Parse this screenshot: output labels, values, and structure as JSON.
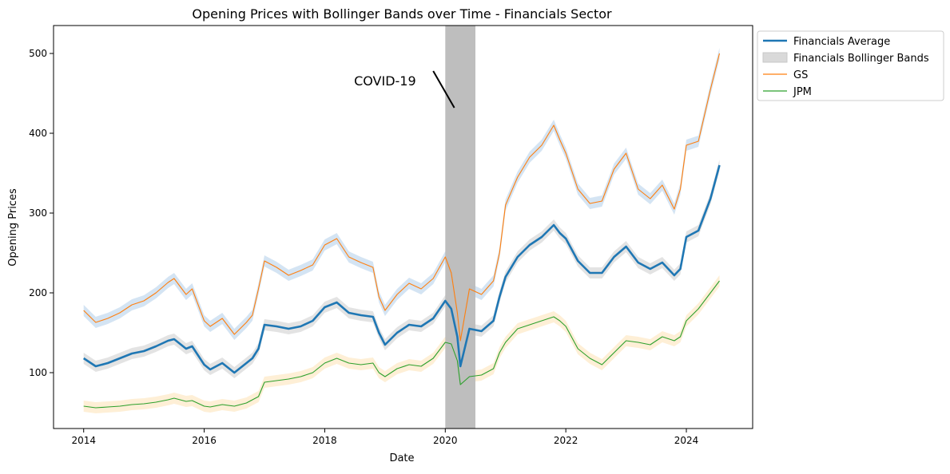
{
  "chart_data": {
    "type": "line",
    "title": "Opening Prices with Bollinger Bands over Time - Financials Sector",
    "xlabel": "Date",
    "ylabel": "Opening Prices",
    "xlim": [
      2013.5,
      2025.1
    ],
    "ylim": [
      30,
      535
    ],
    "x_ticks": [
      2014,
      2016,
      2018,
      2020,
      2022,
      2024
    ],
    "x_tick_labels": [
      "2014",
      "2016",
      "2018",
      "2020",
      "2022",
      "2024"
    ],
    "y_ticks": [
      100,
      200,
      300,
      400,
      500
    ],
    "y_tick_labels": [
      "100",
      "200",
      "300",
      "400",
      "500"
    ],
    "grid": false,
    "legend_position": "outside-top-right",
    "legend": [
      {
        "label": "Financials Average",
        "color": "#1f77b4",
        "kind": "line-thick"
      },
      {
        "label": "Financials Bollinger Bands",
        "color": "#d9d9d9",
        "kind": "band"
      },
      {
        "label": "GS",
        "color": "#ff7f0e",
        "kind": "line"
      },
      {
        "label": "JPM",
        "color": "#2ca02c",
        "kind": "line"
      }
    ],
    "shaded_region": {
      "x_start": 2020.0,
      "x_end": 2020.5,
      "color": "#bbbbbb"
    },
    "annotation": {
      "text": "COVID-19",
      "text_x": 2019.0,
      "text_y": 460,
      "arrow_from": [
        2019.8,
        478
      ],
      "arrow_to": [
        2020.15,
        432
      ]
    },
    "series": [
      {
        "name": "GS",
        "color": "#ff7f0e",
        "band_color": "#c6dbef",
        "x": [
          2014.0,
          2014.2,
          2014.4,
          2014.6,
          2014.8,
          2015.0,
          2015.2,
          2015.4,
          2015.5,
          2015.7,
          2015.8,
          2016.0,
          2016.1,
          2016.3,
          2016.5,
          2016.7,
          2016.8,
          2016.9,
          2017.0,
          2017.2,
          2017.4,
          2017.6,
          2017.8,
          2018.0,
          2018.2,
          2018.4,
          2018.6,
          2018.8,
          2018.9,
          2019.0,
          2019.2,
          2019.4,
          2019.6,
          2019.8,
          2020.0,
          2020.1,
          2020.2,
          2020.25,
          2020.4,
          2020.6,
          2020.8,
          2020.9,
          2021.0,
          2021.2,
          2021.4,
          2021.6,
          2021.8,
          2021.9,
          2022.0,
          2022.2,
          2022.4,
          2022.6,
          2022.8,
          2023.0,
          2023.2,
          2023.4,
          2023.6,
          2023.8,
          2023.9,
          2024.0,
          2024.2,
          2024.4,
          2024.55
        ],
        "y": [
          178,
          163,
          168,
          175,
          185,
          190,
          200,
          213,
          218,
          198,
          205,
          165,
          158,
          168,
          148,
          163,
          172,
          205,
          240,
          232,
          222,
          228,
          235,
          260,
          268,
          245,
          238,
          232,
          195,
          178,
          198,
          212,
          205,
          218,
          245,
          225,
          175,
          140,
          205,
          198,
          215,
          250,
          310,
          345,
          370,
          385,
          410,
          392,
          375,
          330,
          312,
          315,
          355,
          375,
          330,
          318,
          335,
          305,
          330,
          385,
          390,
          455,
          500
        ]
      },
      {
        "name": "Financials Average",
        "color": "#1f77b4",
        "band_color": "#d9d9d9",
        "x": [
          2014.0,
          2014.2,
          2014.4,
          2014.6,
          2014.8,
          2015.0,
          2015.2,
          2015.4,
          2015.5,
          2015.7,
          2015.8,
          2016.0,
          2016.1,
          2016.3,
          2016.5,
          2016.7,
          2016.8,
          2016.9,
          2017.0,
          2017.2,
          2017.4,
          2017.6,
          2017.8,
          2018.0,
          2018.2,
          2018.4,
          2018.6,
          2018.8,
          2018.9,
          2019.0,
          2019.2,
          2019.4,
          2019.6,
          2019.8,
          2020.0,
          2020.1,
          2020.2,
          2020.25,
          2020.4,
          2020.6,
          2020.8,
          2020.9,
          2021.0,
          2021.2,
          2021.4,
          2021.6,
          2021.8,
          2021.9,
          2022.0,
          2022.2,
          2022.4,
          2022.6,
          2022.8,
          2023.0,
          2023.2,
          2023.4,
          2023.6,
          2023.8,
          2023.9,
          2024.0,
          2024.2,
          2024.4,
          2024.55
        ],
        "y": [
          118,
          108,
          112,
          118,
          124,
          127,
          133,
          140,
          142,
          130,
          133,
          110,
          104,
          112,
          100,
          112,
          118,
          130,
          160,
          158,
          155,
          158,
          165,
          182,
          188,
          175,
          172,
          170,
          150,
          135,
          150,
          160,
          158,
          168,
          190,
          180,
          145,
          108,
          155,
          152,
          165,
          195,
          220,
          245,
          260,
          270,
          285,
          275,
          268,
          240,
          225,
          225,
          245,
          258,
          238,
          230,
          238,
          222,
          230,
          270,
          278,
          318,
          360
        ]
      },
      {
        "name": "JPM",
        "color": "#2ca02c",
        "band_color": "#fde9c8",
        "x": [
          2014.0,
          2014.2,
          2014.4,
          2014.6,
          2014.8,
          2015.0,
          2015.2,
          2015.4,
          2015.5,
          2015.7,
          2015.8,
          2016.0,
          2016.1,
          2016.3,
          2016.5,
          2016.7,
          2016.8,
          2016.9,
          2017.0,
          2017.2,
          2017.4,
          2017.6,
          2017.8,
          2018.0,
          2018.2,
          2018.4,
          2018.6,
          2018.8,
          2018.9,
          2019.0,
          2019.2,
          2019.4,
          2019.6,
          2019.8,
          2020.0,
          2020.1,
          2020.2,
          2020.25,
          2020.4,
          2020.6,
          2020.8,
          2020.9,
          2021.0,
          2021.2,
          2021.4,
          2021.6,
          2021.8,
          2021.9,
          2022.0,
          2022.2,
          2022.4,
          2022.6,
          2022.8,
          2023.0,
          2023.2,
          2023.4,
          2023.6,
          2023.8,
          2023.9,
          2024.0,
          2024.2,
          2024.4,
          2024.55
        ],
        "y": [
          58,
          56,
          57,
          58,
          60,
          61,
          63,
          66,
          68,
          64,
          65,
          58,
          57,
          60,
          58,
          62,
          66,
          70,
          88,
          90,
          92,
          95,
          100,
          112,
          118,
          112,
          110,
          112,
          100,
          95,
          105,
          110,
          108,
          118,
          138,
          136,
          115,
          85,
          95,
          97,
          105,
          125,
          138,
          155,
          160,
          165,
          170,
          165,
          158,
          130,
          118,
          110,
          125,
          140,
          138,
          135,
          145,
          140,
          145,
          165,
          180,
          200,
          215
        ]
      }
    ]
  }
}
